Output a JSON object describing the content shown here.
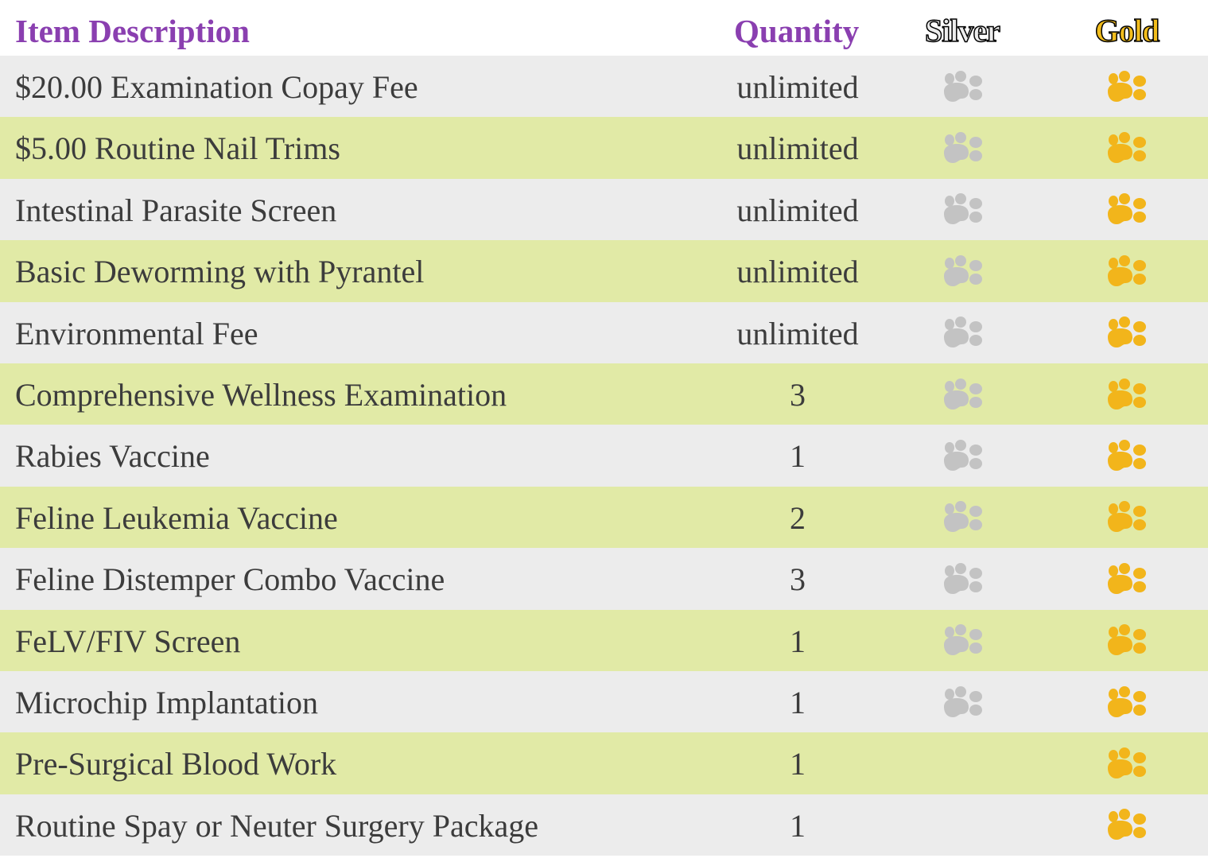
{
  "colors": {
    "header_text": "#8a3fb0",
    "row_odd": "#ececec",
    "row_even": "#e1eaa6",
    "silver_paw": "#c3c3c3",
    "gold_paw": "#f2b51b"
  },
  "header": {
    "description": "Item Description",
    "quantity": "Quantity",
    "silver": "Silver",
    "gold": "Gold"
  },
  "rows": [
    {
      "description": "$20.00 Examination Copay Fee",
      "quantity": "unlimited",
      "silver": true,
      "gold": true
    },
    {
      "description": "$5.00 Routine Nail Trims",
      "quantity": "unlimited",
      "silver": true,
      "gold": true
    },
    {
      "description": "Intestinal Parasite Screen",
      "quantity": "unlimited",
      "silver": true,
      "gold": true
    },
    {
      "description": "Basic Deworming with Pyrantel",
      "quantity": "unlimited",
      "silver": true,
      "gold": true
    },
    {
      "description": "Environmental Fee",
      "quantity": "unlimited",
      "silver": true,
      "gold": true
    },
    {
      "description": "Comprehensive Wellness Examination",
      "quantity": "3",
      "silver": true,
      "gold": true
    },
    {
      "description": "Rabies Vaccine",
      "quantity": "1",
      "silver": true,
      "gold": true
    },
    {
      "description": "Feline Leukemia Vaccine",
      "quantity": "2",
      "silver": true,
      "gold": true
    },
    {
      "description": "Feline Distemper Combo Vaccine",
      "quantity": "3",
      "silver": true,
      "gold": true
    },
    {
      "description": "FeLV/FIV Screen",
      "quantity": "1",
      "silver": true,
      "gold": true
    },
    {
      "description": "Microchip Implantation",
      "quantity": "1",
      "silver": true,
      "gold": true
    },
    {
      "description": "Pre-Surgical Blood Work",
      "quantity": "1",
      "silver": false,
      "gold": true
    },
    {
      "description": "Routine Spay or Neuter Surgery Package",
      "quantity": "1",
      "silver": false,
      "gold": true
    }
  ]
}
